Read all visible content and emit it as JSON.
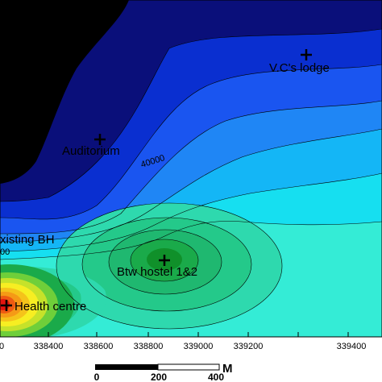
{
  "map": {
    "type": "contour-map",
    "contour_label": "40000",
    "side_label": "00",
    "colors": {
      "black": "#000000",
      "navy": "#0a0f7a",
      "band1": "#0a2fd0",
      "band2": "#1a55f0",
      "band3": "#1f86f5",
      "band4": "#14b6f6",
      "band5": "#16dff0",
      "band6": "#34ecd6",
      "band7": "#2ed9ae",
      "band8": "#24c98a",
      "band9": "#1aaa4a",
      "band10": "#10902a",
      "hot_yellow": "#f7ee22",
      "hot_orange": "#f59a16",
      "hot_red": "#e3140f"
    }
  },
  "locations": [
    {
      "label": "V.C's lodge",
      "icon": "cross-marker-icon"
    },
    {
      "label": "Auditorium",
      "icon": "cross-marker-icon"
    },
    {
      "label": "xisting BH",
      "icon": "cross-marker-icon"
    },
    {
      "label": "Btw  hostel 1&2",
      "icon": "cross-marker-icon"
    },
    {
      "label": "Health centre",
      "icon": "cross-marker-icon"
    }
  ],
  "x_axis": {
    "ticks": [
      "0",
      "338400",
      "338600",
      "338800",
      "339000",
      "339200",
      "339400"
    ]
  },
  "scale_bar": {
    "labels": [
      "0",
      "200",
      "400"
    ],
    "unit": "M"
  }
}
